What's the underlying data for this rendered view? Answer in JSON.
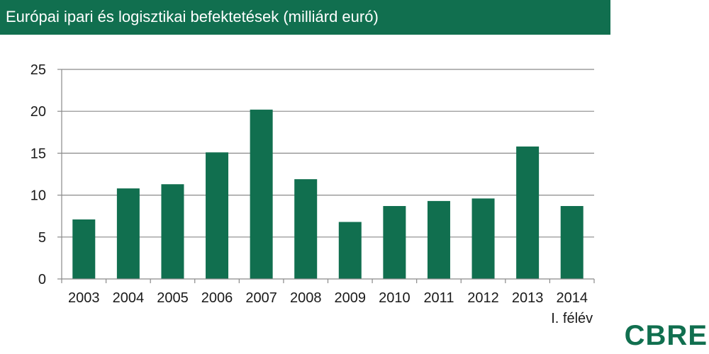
{
  "chart_data": {
    "type": "bar",
    "title": "Európai ipari és logisztikai befektetések (milliárd euró)",
    "categories": [
      "2003",
      "2004",
      "2005",
      "2006",
      "2007",
      "2008",
      "2009",
      "2010",
      "2011",
      "2012",
      "2013",
      "2014"
    ],
    "category_sublabels": [
      "",
      "",
      "",
      "",
      "",
      "",
      "",
      "",
      "",
      "",
      "",
      "I. félév"
    ],
    "values": [
      7.1,
      10.8,
      11.3,
      15.1,
      20.2,
      11.9,
      6.8,
      8.7,
      9.3,
      9.6,
      15.8,
      8.7
    ],
    "xlabel": "",
    "ylabel": "",
    "ylim": [
      0,
      25
    ],
    "yticks": [
      0,
      5,
      10,
      15,
      20,
      25
    ],
    "grid": true,
    "legend": "none"
  },
  "colors": {
    "bar": "#116f4f",
    "title_bg": "#116f4f",
    "grid": "#8a8a8a",
    "axis": "#8a8a8a",
    "text": "#1a1a1a",
    "logo": "#116f4f"
  },
  "brand": {
    "logo_text": "CBRE"
  }
}
